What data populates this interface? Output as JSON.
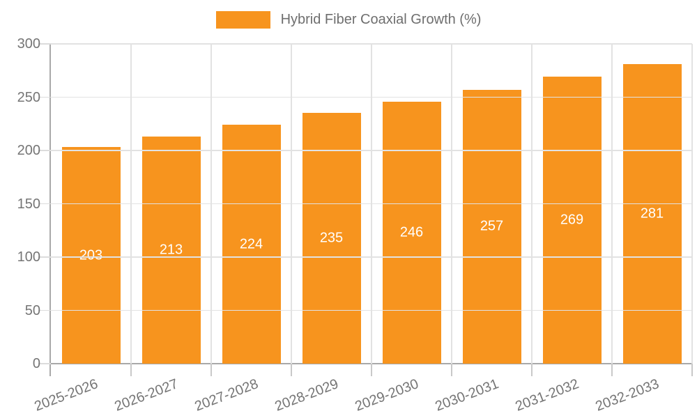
{
  "chart_data": {
    "type": "bar",
    "legend_label": "Hybrid Fiber Coaxial Growth (%)",
    "categories": [
      "2025-2026",
      "2026-2027",
      "2027-2028",
      "2028-2029",
      "2029-2030",
      "2030-2031",
      "2031-2032",
      "2032-2033"
    ],
    "values": [
      203,
      213,
      224,
      235,
      246,
      257,
      269,
      281
    ],
    "ylim": [
      0,
      300
    ],
    "yticks": [
      0,
      50,
      100,
      150,
      200,
      250,
      300
    ],
    "grid": "on",
    "legend_position": "top-center",
    "value_labels": "inside-center"
  },
  "colors": {
    "bar": "#f7941e",
    "grid": "#e2e2e2",
    "axis": "#a8a8a8",
    "tick_light": "#dcdcdc",
    "tick_dark": "#c9c9c9",
    "axis_label_text": "#757575",
    "legend_text": "#6e6e6e",
    "value_label_text": "#ffffff",
    "background": "#ffffff"
  }
}
